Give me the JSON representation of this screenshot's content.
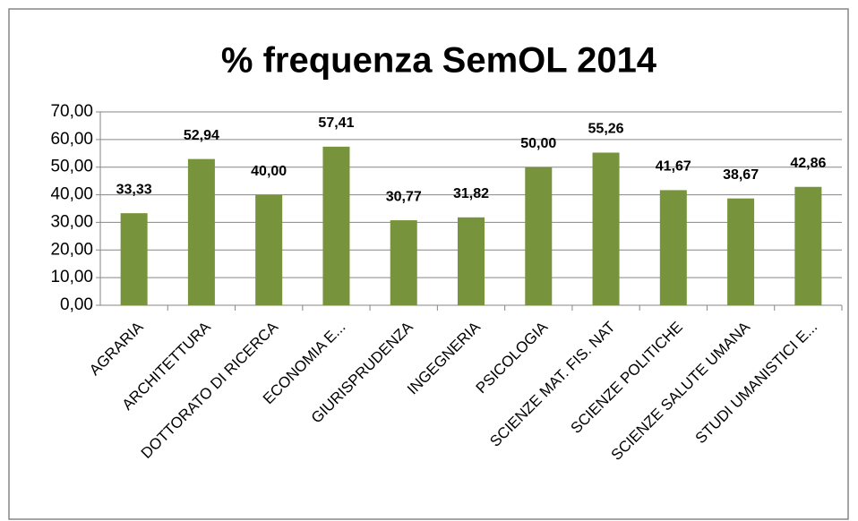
{
  "chart_data": {
    "type": "bar",
    "title": "%  frequenza SemOL 2014",
    "categories": [
      "AGRARIA",
      "ARCHITETTURA",
      "DOTTORATO DI RICERCA",
      "ECONOMIA E...",
      "GIURISPRUDENZA",
      "INGEGNERIA",
      "PSICOLOGIA",
      "SCIENZE MAT. FIS. NAT",
      "SCIENZE POLITICHE",
      "SCIENZE SALUTE UMANA",
      "STUDI UMANISTICI E..."
    ],
    "values": [
      33.33,
      52.94,
      40.0,
      57.41,
      30.77,
      31.82,
      50.0,
      55.26,
      41.67,
      38.67,
      42.86
    ],
    "value_labels": [
      "33,33",
      "52,94",
      "40,00",
      "57,41",
      "30,77",
      "31,82",
      "50,00",
      "55,26",
      "41,67",
      "38,67",
      "42,86"
    ],
    "color": "#77933c",
    "ylim": [
      0,
      70
    ],
    "yticks": [
      {
        "value": 0,
        "label": "0,00"
      },
      {
        "value": 10,
        "label": "10,00"
      },
      {
        "value": 20,
        "label": "20,00"
      },
      {
        "value": 30,
        "label": "30,00"
      },
      {
        "value": 40,
        "label": "40,00"
      },
      {
        "value": 50,
        "label": "50,00"
      },
      {
        "value": 60,
        "label": "60,00"
      },
      {
        "value": 70,
        "label": "70,00"
      }
    ],
    "grid": true
  }
}
